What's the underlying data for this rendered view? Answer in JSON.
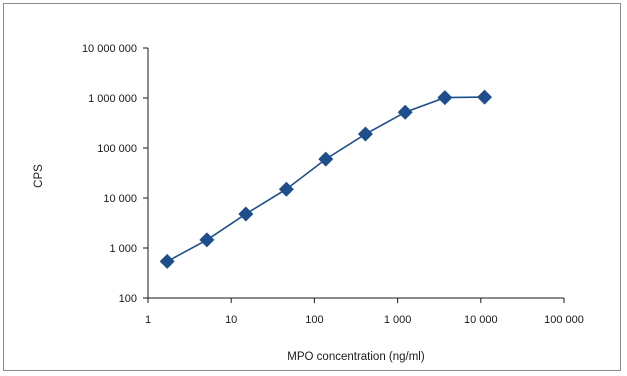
{
  "chart_data": {
    "type": "line",
    "title": "",
    "xlabel": "MPO concentration (ng/ml)",
    "ylabel": "CPS",
    "x_scale": "log",
    "y_scale": "log",
    "xlim": [
      1,
      100000
    ],
    "ylim": [
      100,
      10000000
    ],
    "x_ticks": [
      {
        "value": 1,
        "label": "1"
      },
      {
        "value": 10,
        "label": "10"
      },
      {
        "value": 100,
        "label": "100"
      },
      {
        "value": 1000,
        "label": "1 000"
      },
      {
        "value": 10000,
        "label": "10 000"
      },
      {
        "value": 100000,
        "label": "100 000"
      }
    ],
    "y_ticks": [
      {
        "value": 100,
        "label": "100"
      },
      {
        "value": 1000,
        "label": "1 000"
      },
      {
        "value": 10000,
        "label": "10 000"
      },
      {
        "value": 100000,
        "label": "100 000"
      },
      {
        "value": 1000000,
        "label": "1 000 000"
      },
      {
        "value": 10000000,
        "label": "10 000 000"
      }
    ],
    "grid": false,
    "marker": "diamond",
    "color": "#1f4e8c",
    "series": [
      {
        "x": [
          1.7,
          5.1,
          15,
          46,
          137,
          411,
          1234,
          3700,
          11100
        ],
        "values": [
          540,
          1450,
          4800,
          15000,
          60000,
          190000,
          520000,
          1020000,
          1040000
        ]
      }
    ]
  }
}
